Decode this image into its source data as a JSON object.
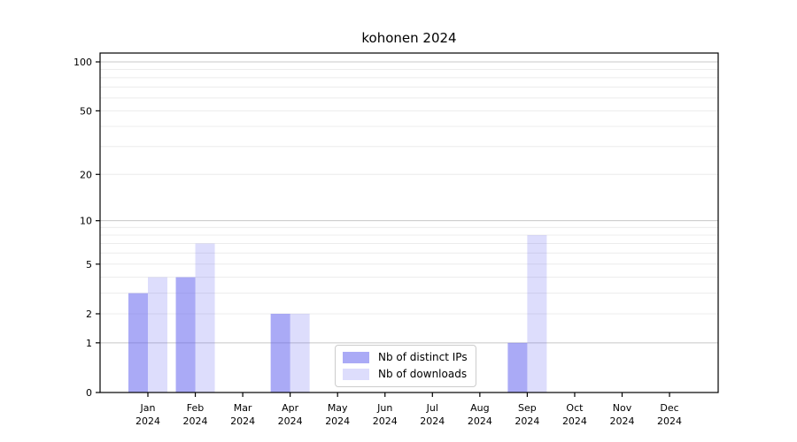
{
  "title": "kohonen 2024",
  "legend": {
    "items": [
      {
        "label": "Nb of distinct IPs"
      },
      {
        "label": "Nb of downloads"
      }
    ]
  },
  "chart_data": {
    "type": "bar",
    "title": "kohonen 2024",
    "x_months": [
      "Jan",
      "Feb",
      "Mar",
      "Apr",
      "May",
      "Jun",
      "Jul",
      "Aug",
      "Sep",
      "Oct",
      "Nov",
      "Dec"
    ],
    "x_year": "2024",
    "series": [
      {
        "name": "Nb of distinct IPs",
        "base_color": "#5555ee",
        "alpha": 0.5,
        "values": [
          3,
          4,
          0,
          2,
          0,
          0,
          0,
          0,
          1,
          0,
          0,
          0
        ]
      },
      {
        "name": "Nb of downloads",
        "base_color": "#5555ee",
        "alpha": 0.2,
        "values": [
          4,
          7,
          0,
          2,
          0,
          0,
          0,
          0,
          8,
          0,
          0,
          0
        ]
      }
    ],
    "y_scale": "log1p",
    "y_ticks": [
      0,
      1,
      2,
      5,
      10,
      20,
      50,
      100
    ],
    "y_major_gridlines": [
      1,
      10,
      100
    ],
    "y_minor_gridlines": [
      2,
      3,
      4,
      5,
      6,
      7,
      8,
      9,
      20,
      30,
      40,
      50,
      60,
      70,
      80,
      90
    ],
    "ylim": [
      0,
      100
    ],
    "grid": true,
    "legend_position": "inside-bottom-center",
    "colors": {
      "axis": "#000000",
      "major_grid": "#c8c8c8",
      "minor_grid": "#ececec",
      "tick_text": "#000000",
      "background": "#ffffff"
    }
  }
}
